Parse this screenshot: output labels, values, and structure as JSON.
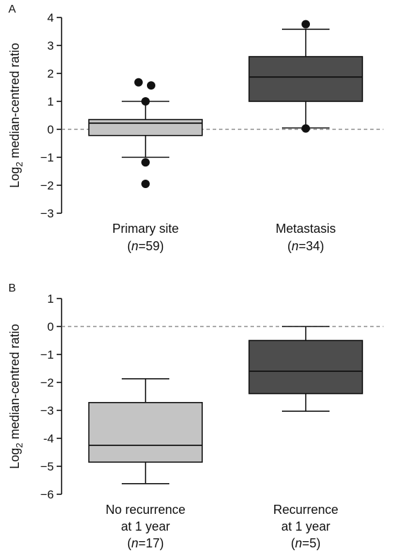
{
  "chart_data": [
    {
      "type": "box",
      "panel_label": "A",
      "ylabel": {
        "main": "Log",
        "sub": "2",
        "rest": " median-centred ratio"
      },
      "ylim": [
        -3,
        4
      ],
      "yticks": [
        -3,
        -2,
        -1,
        0,
        1,
        2,
        3,
        4
      ],
      "tick_labels": [
        "−3",
        "−2",
        "−1",
        "0",
        "1",
        "2",
        "3",
        "4"
      ],
      "reference_line": 0,
      "reference_line_style": "dashed",
      "grid": false,
      "boxes": [
        {
          "label_line1": "Primary site",
          "n_prefix": "(",
          "n_var": "n",
          "n_value": "=59)",
          "color": "#c4c4c4",
          "q1": -0.22,
          "median": 0.22,
          "q3": 0.35,
          "whisker_low": -1.0,
          "whisker_high": 1.0,
          "outliers": [
            1.68,
            1.57,
            1.0,
            -1.18,
            -1.95
          ]
        },
        {
          "label_line1": "Metastasis",
          "n_prefix": "(",
          "n_var": "n",
          "n_value": "=34)",
          "color": "#4d4d4d",
          "q1": 1.0,
          "median": 1.87,
          "q3": 2.6,
          "whisker_low": 0.05,
          "whisker_high": 3.58,
          "outliers": [
            3.76,
            0.03
          ]
        }
      ]
    },
    {
      "type": "box",
      "panel_label": "B",
      "ylabel": {
        "main": "Log",
        "sub": "2",
        "rest": " median-centred ratio"
      },
      "ylim": [
        -6,
        1
      ],
      "yticks": [
        -6,
        -5,
        -4,
        -3,
        -2,
        -1,
        0,
        1
      ],
      "tick_labels": [
        "−6",
        "−5",
        "-4",
        "−3",
        "−2",
        "−1",
        "0",
        "1"
      ],
      "reference_line": 0,
      "reference_line_style": "dashed",
      "grid": false,
      "boxes": [
        {
          "label_line1": "No recurrence",
          "label_line2": "at 1 year",
          "n_prefix": "(",
          "n_var": "n",
          "n_value": "=17)",
          "color": "#c4c4c4",
          "q1": -4.85,
          "median": -4.25,
          "q3": -2.72,
          "whisker_low": -5.62,
          "whisker_high": -1.87,
          "outliers": []
        },
        {
          "label_line1": "Recurrence",
          "label_line2": "at 1 year",
          "n_prefix": "(",
          "n_var": "n",
          "n_value": "=5)",
          "color": "#4d4d4d",
          "q1": -2.4,
          "median": -1.6,
          "q3": -0.5,
          "whisker_low": -3.03,
          "whisker_high": 0.0,
          "outliers": []
        }
      ]
    }
  ]
}
